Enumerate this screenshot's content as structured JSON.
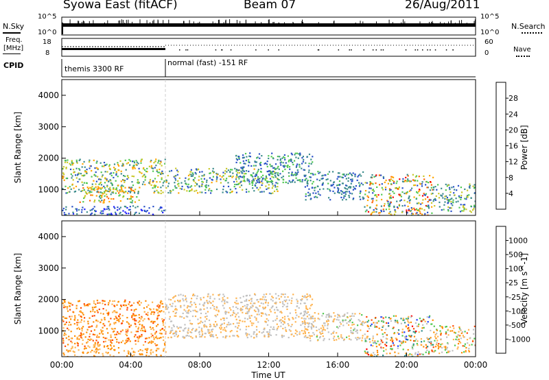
{
  "header": {
    "title": "Syowa East (fitACF)",
    "beam": "Beam 07",
    "date": "26/Aug/2011"
  },
  "side_labels": {
    "nsky": "N.Sky",
    "freq_line1": "Freq.",
    "freq_line2": "[MHz]",
    "cpid": "CPID",
    "nsearch": "N.Search",
    "nave": "Nave"
  },
  "status_axes": {
    "nsky_ticks": [
      "10^5",
      "10^0"
    ],
    "nsearch_ticks": [
      "10^5",
      "10^0"
    ],
    "freq_ticks": [
      "18",
      "8"
    ],
    "nave_ticks": [
      "60",
      "0"
    ]
  },
  "cpid_segments": [
    {
      "label": "themis 3300 RF",
      "start": "00:00",
      "end": "06:00"
    },
    {
      "label": "normal (fast) -151 RF",
      "start": "06:00",
      "end": "24:00"
    }
  ],
  "colors": {
    "power": [
      "#1e1eff",
      "#2850c8",
      "#3c8c8c",
      "#50c850",
      "#c8c828",
      "#ffa500",
      "#ff6400",
      "#ff0000"
    ],
    "velocity": [
      "#ff0000",
      "#ff4600",
      "#ff8c00",
      "#ffb450",
      "#c0c0c0",
      "#50c850",
      "#2e8b8b",
      "#1e3cff"
    ]
  },
  "chart_data": [
    {
      "type": "heatmap",
      "name": "power",
      "ylabel": "Slant Range [km]",
      "xlabel": "",
      "y_ticks": [
        "1000",
        "2000",
        "3000",
        "4000"
      ],
      "x_ticks": [
        "00:00",
        "04:00",
        "08:00",
        "12:00",
        "16:00",
        "20:00",
        "00:00"
      ],
      "xlim_hours": [
        0,
        24
      ],
      "ylim_km": [
        180,
        4500
      ],
      "colorbar": {
        "label": "Power [dB]",
        "ticks": [
          "28",
          "24",
          "20",
          "16",
          "12",
          "8",
          "4"
        ],
        "range": [
          0,
          30
        ]
      },
      "regions": [
        {
          "t0": 0.0,
          "t1": 6.0,
          "r0": 900,
          "r1": 2000,
          "v0": 6,
          "v1": 22
        },
        {
          "t0": 1.0,
          "t1": 4.5,
          "r0": 600,
          "r1": 1100,
          "v0": 10,
          "v1": 26
        },
        {
          "t0": 0.0,
          "t1": 6.0,
          "r0": 200,
          "r1": 500,
          "v0": 2,
          "v1": 10
        },
        {
          "t0": 6.0,
          "t1": 12.5,
          "r0": 900,
          "r1": 1700,
          "v0": 4,
          "v1": 20
        },
        {
          "t0": 10.0,
          "t1": 14.5,
          "r0": 1200,
          "r1": 2200,
          "v0": 4,
          "v1": 14
        },
        {
          "t0": 14.0,
          "t1": 17.5,
          "r0": 700,
          "r1": 1600,
          "v0": 4,
          "v1": 12
        },
        {
          "t0": 17.5,
          "t1": 21.5,
          "r0": 200,
          "r1": 1500,
          "v0": 4,
          "v1": 28
        },
        {
          "t0": 21.5,
          "t1": 24.0,
          "r0": 300,
          "r1": 1200,
          "v0": 4,
          "v1": 18
        }
      ]
    },
    {
      "type": "heatmap",
      "name": "velocity",
      "ylabel": "Slant Range [km]",
      "xlabel": "Time UT",
      "y_ticks": [
        "1000",
        "2000",
        "3000",
        "4000"
      ],
      "x_ticks": [
        "00:00",
        "04:00",
        "08:00",
        "12:00",
        "16:00",
        "20:00",
        "00:00"
      ],
      "xlim_hours": [
        0,
        24
      ],
      "ylim_km": [
        180,
        4500
      ],
      "colorbar": {
        "label": "Velocity [m s^-1]",
        "ticks": [
          "1000",
          "500",
          "100",
          "25",
          "-25",
          "-100",
          "-500",
          "-1000"
        ],
        "range": [
          -1000,
          1000
        ]
      },
      "regions": [
        {
          "t0": 0.0,
          "t1": 6.0,
          "r0": 500,
          "r1": 2000,
          "v0": -600,
          "v1": -80
        },
        {
          "t0": 0.0,
          "t1": 6.0,
          "r0": 200,
          "r1": 500,
          "v0": -400,
          "v1": -50
        },
        {
          "t0": 6.0,
          "t1": 14.5,
          "r0": 800,
          "r1": 2200,
          "v0": -30,
          "v1": 30
        },
        {
          "t0": 14.0,
          "t1": 17.5,
          "r0": 700,
          "r1": 1600,
          "v0": -200,
          "v1": 300
        },
        {
          "t0": 17.5,
          "t1": 21.5,
          "r0": 200,
          "r1": 1500,
          "v0": -800,
          "v1": 900
        },
        {
          "t0": 21.5,
          "t1": 24.0,
          "r0": 300,
          "r1": 1200,
          "v0": -600,
          "v1": 400
        }
      ]
    }
  ]
}
